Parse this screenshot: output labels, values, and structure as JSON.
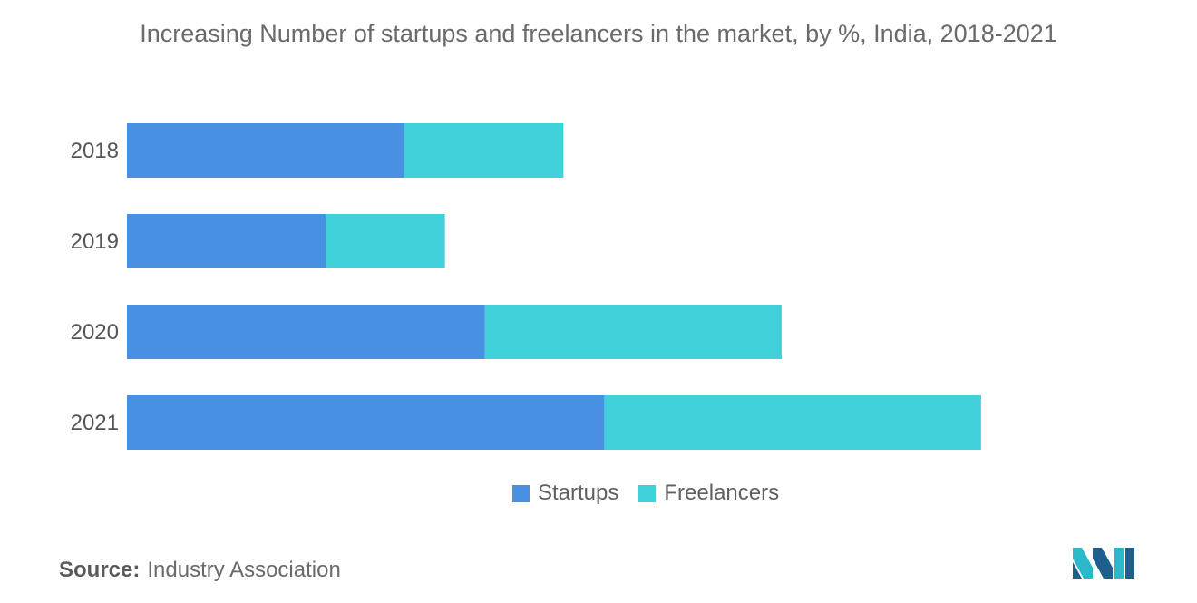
{
  "chart_data": {
    "type": "bar",
    "orientation": "horizontal",
    "stacked": true,
    "title": "Increasing Number of startups and freelancers in the market, by %, India, 2018-2021",
    "categories": [
      "2018",
      "2019",
      "2020",
      "2021"
    ],
    "series": [
      {
        "name": "Startups",
        "color": "#4a90e2",
        "values": [
          32.5,
          23.3,
          42.0,
          56.0
        ]
      },
      {
        "name": "Freelancers",
        "color": "#40d0d9",
        "values": [
          18.7,
          14.0,
          34.8,
          44.2
        ]
      }
    ],
    "xlim": [
      0,
      100
    ],
    "grid": false,
    "legend_position": "bottom",
    "x_axis_visible": false
  },
  "source": {
    "label": "Source:",
    "text": "Industry Association"
  },
  "logo_icon": "mordor-intelligence-logo"
}
